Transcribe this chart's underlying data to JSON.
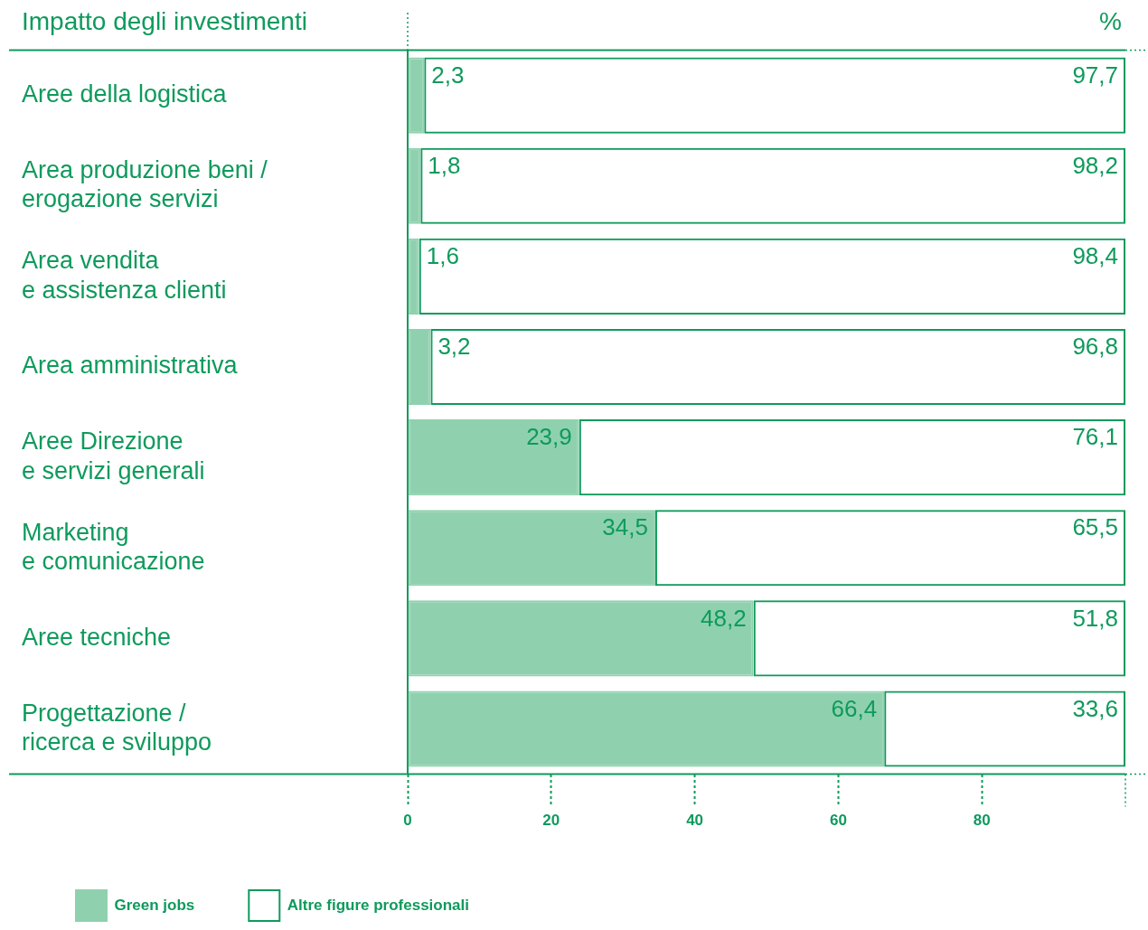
{
  "chart_data": {
    "type": "bar",
    "orientation": "horizontal",
    "stacked": true,
    "title": "Impatto degli investimenti",
    "xlabel": "%",
    "categories": [
      "Aree della logistica",
      "Area produzione beni /\nerogazione servizi",
      "Area vendita\ne assistenza clienti",
      "Area amministrativa",
      "Aree Direzione\ne servizi generali",
      "Marketing\ne comunicazione",
      "Aree tecniche",
      "Progettazione /\nricerca e sviluppo"
    ],
    "series": [
      {
        "name": "Green jobs",
        "color": "#8fd1ae",
        "values": [
          2.3,
          1.8,
          1.6,
          3.2,
          23.9,
          34.5,
          48.2,
          66.4
        ],
        "value_labels": [
          "2,3",
          "1,8",
          "1,6",
          "3,2",
          "23,9",
          "34,5",
          "48,2",
          "66,4"
        ]
      },
      {
        "name": "Altre figure professionali",
        "color": "#0e9a5c",
        "values": [
          97.7,
          98.2,
          98.4,
          96.8,
          76.1,
          65.5,
          51.8,
          33.6
        ],
        "value_labels": [
          "97,7",
          "98,2",
          "98,4",
          "96,8",
          "76,1",
          "65,5",
          "51,8",
          "33,6"
        ]
      }
    ],
    "xlim": [
      0,
      100
    ],
    "xticks": [
      0,
      20,
      40,
      60,
      80
    ],
    "legend": "bottom left"
  }
}
